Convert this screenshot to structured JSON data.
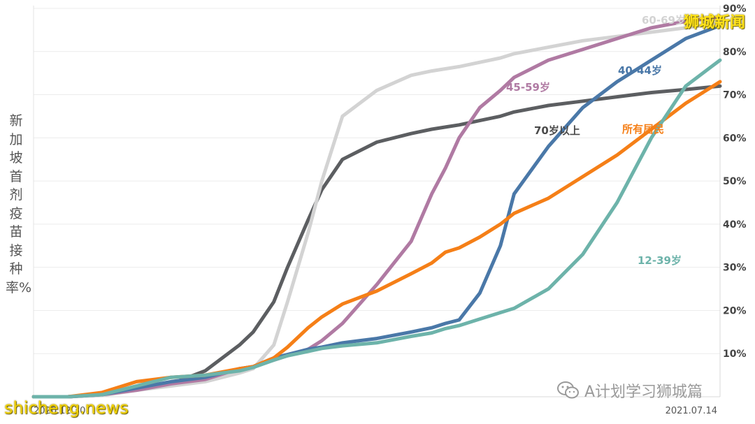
{
  "watermarks": {
    "top": "狮城新闻",
    "bottom": "shicheng.news",
    "channel": "A计划学习狮城篇"
  },
  "chart_data": {
    "type": "line",
    "ylabel": "新加坡首剂疫苗接种率%",
    "ylim": [
      0,
      90
    ],
    "yticks": [
      10,
      20,
      30,
      40,
      50,
      60,
      70,
      80,
      90
    ],
    "ytick_labels": [
      "10%",
      "20%",
      "30%",
      "40%",
      "50%",
      "60%",
      "70%",
      "80%",
      "90%"
    ],
    "x_start_label": "2020.12.30",
    "x_end_label": "2021.07.14",
    "grid": true,
    "x": [
      0,
      5,
      10,
      15,
      20,
      25,
      30,
      32,
      35,
      37,
      40,
      42,
      45,
      50,
      55,
      58,
      60,
      62,
      65,
      68,
      70,
      75,
      80,
      85,
      90,
      95,
      100
    ],
    "series": [
      {
        "name": "70岁以上",
        "color": "#5c5e61",
        "values": [
          0,
          0,
          0.5,
          2,
          3,
          6,
          12,
          15,
          22,
          30,
          41,
          48,
          55,
          59,
          61,
          62,
          62.5,
          63,
          64,
          65,
          66,
          67.5,
          68.5,
          69.5,
          70.5,
          71.2,
          72
        ]
      },
      {
        "name": "60-69岁",
        "color": "#d3d3d3",
        "values": [
          0,
          0,
          0.3,
          1.5,
          2.5,
          3.5,
          5.5,
          6.5,
          12,
          22,
          38,
          50,
          65,
          71,
          74.5,
          75.5,
          76,
          76.5,
          77.5,
          78.5,
          79.5,
          81,
          82.5,
          83.5,
          84.5,
          85.5,
          86.5
        ]
      },
      {
        "name": "45-59岁",
        "color": "#b07aa3",
        "values": [
          0,
          0,
          0.5,
          1.5,
          3,
          4,
          6.5,
          7,
          8.5,
          9.5,
          11,
          13,
          17,
          26,
          36,
          47,
          53,
          60,
          67,
          71,
          74,
          78,
          80.5,
          83,
          85.5,
          87,
          88
        ]
      },
      {
        "name": "40-44岁",
        "color": "#4a78a8",
        "values": [
          0,
          0,
          0.5,
          2,
          3.5,
          4.5,
          6.5,
          7,
          9,
          9.8,
          11,
          11.5,
          12.5,
          13.5,
          15,
          16,
          17,
          17.8,
          24,
          35,
          47,
          58,
          67,
          73,
          78,
          83,
          86
        ]
      },
      {
        "name": "所有居民",
        "color": "#f57f17",
        "values": [
          0,
          0,
          1,
          3.5,
          4.5,
          5,
          6.5,
          7,
          9,
          11.5,
          16,
          18.5,
          21.5,
          24.5,
          28.5,
          31,
          33.5,
          34.5,
          37,
          40,
          42.5,
          46,
          51,
          56,
          62,
          68,
          73
        ]
      },
      {
        "name": "12-39岁",
        "color": "#6db3aa",
        "values": [
          0,
          0,
          0.5,
          2.5,
          4.5,
          5,
          6,
          6.8,
          8.5,
          9.5,
          10.5,
          11.2,
          11.8,
          12.5,
          14,
          14.8,
          15.8,
          16.5,
          18,
          19.5,
          20.5,
          25,
          33,
          45,
          60,
          72,
          78
        ]
      }
    ],
    "annotations": [
      {
        "text": "60-69岁",
        "series": "60-69岁"
      },
      {
        "text": "45-59岁",
        "series": "45-59岁"
      },
      {
        "text": "40-44岁",
        "series": "40-44岁"
      },
      {
        "text": "70岁以上",
        "series": "70岁以上"
      },
      {
        "text": "所有居民",
        "series": "所有居民"
      },
      {
        "text": "12-39岁",
        "series": "12-39岁"
      }
    ]
  }
}
